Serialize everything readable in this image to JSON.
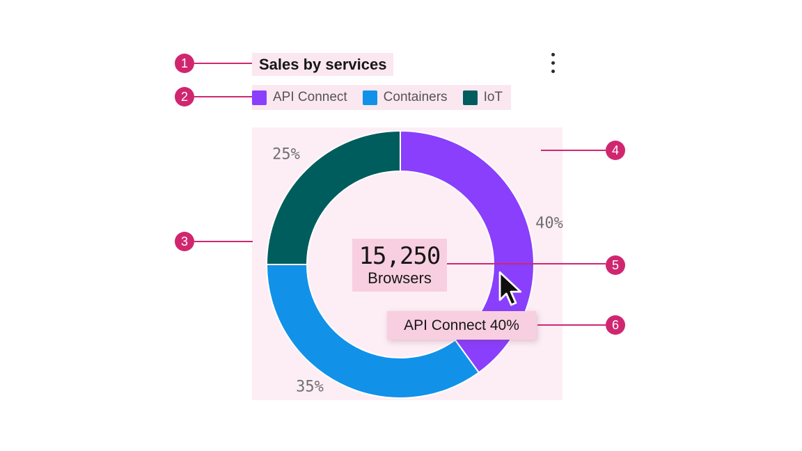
{
  "annotation": {
    "badge_color": "#d02670",
    "highlight_light": "#fbe7f0",
    "highlight_overlay": "#fdeef5",
    "highlight_strong": "#f8cfe0",
    "badges": [
      "1",
      "2",
      "3",
      "4",
      "5",
      "6"
    ]
  },
  "chart_data": {
    "type": "pie",
    "variant": "donut",
    "title": "Sales by services",
    "legend_position": "top",
    "start_angle": "top",
    "direction": "clockwise",
    "categories": [
      "API Connect",
      "Containers",
      "IoT"
    ],
    "values": [
      40,
      35,
      25
    ],
    "slices": [
      {
        "label": "API Connect",
        "value": 40,
        "display": "40%",
        "color": "#8a3ffc"
      },
      {
        "label": "Containers",
        "value": 35,
        "display": "35%",
        "color": "#1192e8"
      },
      {
        "label": "IoT",
        "value": 25,
        "display": "25%",
        "color": "#005d5d"
      }
    ],
    "center": {
      "value": "15,250",
      "label": "Browsers"
    },
    "tooltip": {
      "text": "API Connect 40%"
    }
  }
}
